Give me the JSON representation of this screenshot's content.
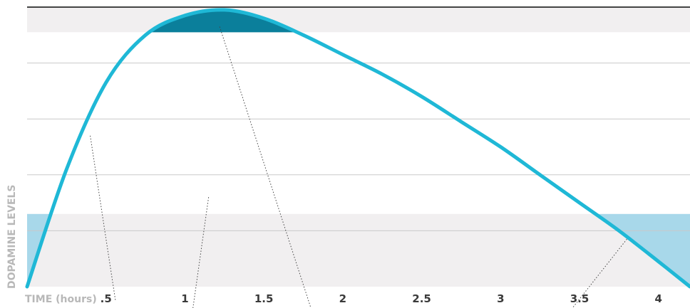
{
  "chart_data": {
    "type": "line",
    "title": "",
    "xlabel": "TIME (hours)",
    "ylabel": "DOPAMINE LEVELS",
    "xlim": [
      0,
      4.2
    ],
    "ylim": [
      0,
      1
    ],
    "x_ticks": [
      0.5,
      1,
      1.5,
      2,
      2.5,
      3,
      3.5,
      4
    ],
    "x_tick_labels": [
      ".5",
      "1",
      "1.5",
      "2",
      "2.5",
      "3",
      "3.5",
      "4"
    ],
    "grid": true,
    "series": [
      {
        "name": "",
        "color": "#1fb8d6",
        "x": [
          0,
          0.25,
          0.5,
          0.75,
          1,
          1.25,
          1.5,
          1.75,
          2,
          2.25,
          2.5,
          2.75,
          3,
          3.25,
          3.5,
          3.75,
          4,
          4.2
        ],
        "y": [
          0,
          0.42,
          0.73,
          0.9,
          0.97,
          0.99,
          0.96,
          0.9,
          0.83,
          0.76,
          0.68,
          0.59,
          0.5,
          0.4,
          0.3,
          0.2,
          0.09,
          0
        ]
      }
    ],
    "bands": {
      "upper_threshold": 0.91,
      "lower_threshold": 0.26,
      "upper_color": "#f1eff0",
      "middle_color": "#ffffff",
      "lower_color": "#f1eff0",
      "low_highlight_color": "#a8d8ea",
      "peak_highlight_color": "#0b7f9b"
    }
  }
}
